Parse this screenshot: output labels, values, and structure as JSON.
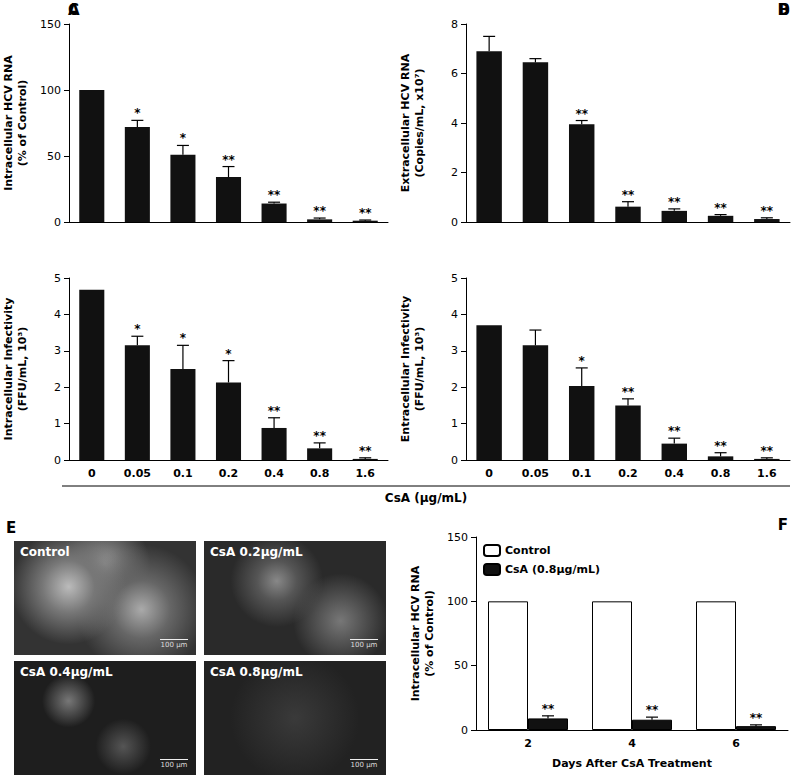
{
  "chart_data": [
    {
      "panel": "A",
      "type": "bar",
      "ylabel": "Intracellular HCV RNA\n(% of Control)",
      "categories": [
        "0",
        "0.05",
        "0.1",
        "0.2",
        "0.4",
        "0.8",
        "1.6"
      ],
      "values": [
        100,
        72,
        51,
        34,
        14,
        2,
        1
      ],
      "errors": [
        0,
        5,
        7,
        8,
        1,
        1,
        0.5
      ],
      "significance": [
        null,
        "*",
        "*",
        "**",
        "**",
        "**",
        "**"
      ],
      "color": "#111111",
      "ylim": [
        0,
        150
      ],
      "yticks": [
        0,
        50,
        100,
        150
      ],
      "grid": false,
      "tick_labels": "y"
    },
    {
      "panel": "B",
      "type": "bar",
      "ylabel": "Extracellular HCV RNA\n(Copies/mL, x10⁷)",
      "categories": [
        "0",
        "0.05",
        "0.1",
        "0.2",
        "0.4",
        "0.8",
        "1.6"
      ],
      "values": [
        6.9,
        6.45,
        3.95,
        0.62,
        0.45,
        0.25,
        0.12
      ],
      "errors": [
        0.6,
        0.15,
        0.15,
        0.2,
        0.08,
        0.05,
        0.05
      ],
      "significance": [
        null,
        null,
        "**",
        "**",
        "**",
        "**",
        "**"
      ],
      "color": "#111111",
      "ylim": [
        0,
        8
      ],
      "yticks": [
        0,
        2,
        4,
        6,
        8
      ],
      "grid": false,
      "tick_labels": "y"
    },
    {
      "panel": "C",
      "type": "bar",
      "ylabel": "Intracellular Infectivity\n(FFU/mL, 10³)",
      "categories": [
        "0",
        "0.05",
        "0.1",
        "0.2",
        "0.4",
        "0.8",
        "1.6"
      ],
      "values": [
        4.68,
        3.15,
        2.5,
        2.13,
        0.88,
        0.32,
        0.03
      ],
      "errors": [
        0,
        0.25,
        0.65,
        0.6,
        0.28,
        0.15,
        0.03
      ],
      "significance": [
        null,
        "*",
        "*",
        "*",
        "**",
        "**",
        "**"
      ],
      "color": "#111111",
      "ylim": [
        0,
        5
      ],
      "yticks": [
        0,
        1,
        2,
        3,
        4,
        5
      ],
      "grid": false
    },
    {
      "panel": "D",
      "type": "bar",
      "ylabel": "Entracellular Infectivity\n(FFU/mL, 10³)",
      "categories": [
        "0",
        "0.05",
        "0.1",
        "0.2",
        "0.4",
        "0.8",
        "1.6"
      ],
      "values": [
        3.7,
        3.15,
        2.03,
        1.5,
        0.45,
        0.1,
        0.03
      ],
      "errors": [
        0,
        0.42,
        0.5,
        0.18,
        0.15,
        0.1,
        0.03
      ],
      "significance": [
        null,
        null,
        "*",
        "**",
        "**",
        "**",
        "**"
      ],
      "color": "#111111",
      "ylim": [
        0,
        5
      ],
      "yticks": [
        0,
        1,
        2,
        3,
        4,
        5
      ],
      "grid": false
    },
    {
      "panel": "E",
      "type": "micrographs",
      "images": [
        {
          "label": "Control"
        },
        {
          "label": "CsA 0.2μg/mL"
        },
        {
          "label": "CsA 0.4μg/mL"
        },
        {
          "label": "CsA 0.8μg/mL"
        }
      ],
      "scale_bar": "100 μm"
    },
    {
      "panel": "F",
      "type": "bar",
      "ylabel": "Intracellular HCV RNA\n(% of Control)",
      "xlabel": "Days After CsA Treatment",
      "categories": [
        "2",
        "4",
        "6"
      ],
      "series": [
        {
          "name": "Control",
          "color": "#ffffff",
          "values": [
            100,
            100,
            100
          ]
        },
        {
          "name": "CsA (0.8μg/mL)",
          "color": "#111111",
          "values": [
            9,
            8,
            3
          ],
          "errors": [
            2,
            2,
            1
          ],
          "significance": [
            "**",
            "**",
            "**"
          ]
        }
      ],
      "ylim": [
        0,
        150
      ],
      "yticks": [
        0,
        50,
        100,
        150
      ],
      "grid": false,
      "legend": "top-left"
    }
  ],
  "shared_xlabel": "CsA (μg/mL)"
}
